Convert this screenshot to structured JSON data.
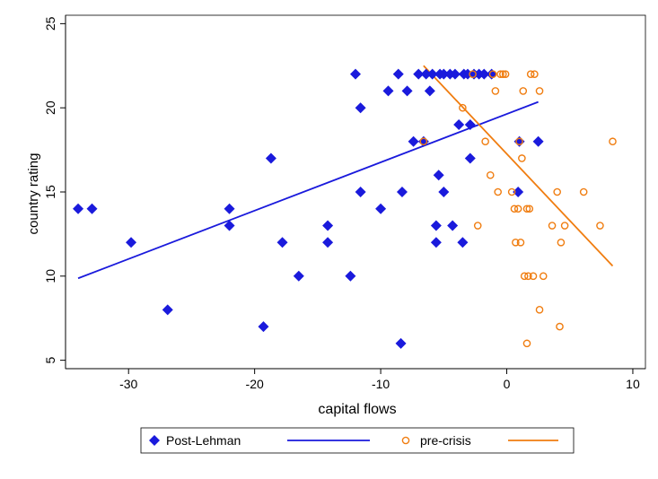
{
  "chart_data": {
    "type": "scatter",
    "title": "",
    "xlabel": "capital flows",
    "ylabel": "country rating",
    "xlim": [
      -35,
      11
    ],
    "ylim": [
      4.5,
      25.5
    ],
    "xticks": [
      -30,
      -20,
      -10,
      0,
      10
    ],
    "yticks": [
      5,
      10,
      15,
      20,
      25
    ],
    "grid": false,
    "legend_position": "bottom",
    "colors": {
      "post_lehman": "#1a1adc",
      "pre_crisis": "#f07d10"
    },
    "series": [
      {
        "name": "Post-Lehman",
        "marker": "diamond",
        "points": [
          {
            "x": -34.0,
            "y": 14
          },
          {
            "x": -32.9,
            "y": 14
          },
          {
            "x": -29.8,
            "y": 12
          },
          {
            "x": -26.9,
            "y": 8
          },
          {
            "x": -22.0,
            "y": 14
          },
          {
            "x": -22.0,
            "y": 13
          },
          {
            "x": -19.3,
            "y": 7
          },
          {
            "x": -18.7,
            "y": 17
          },
          {
            "x": -17.8,
            "y": 12
          },
          {
            "x": -16.5,
            "y": 10
          },
          {
            "x": -14.2,
            "y": 13
          },
          {
            "x": -14.2,
            "y": 12
          },
          {
            "x": -12.4,
            "y": 10
          },
          {
            "x": -12.0,
            "y": 22
          },
          {
            "x": -11.6,
            "y": 20
          },
          {
            "x": -11.6,
            "y": 15
          },
          {
            "x": -10.0,
            "y": 14
          },
          {
            "x": -9.4,
            "y": 21
          },
          {
            "x": -8.6,
            "y": 22
          },
          {
            "x": -8.3,
            "y": 15
          },
          {
            "x": -8.4,
            "y": 6
          },
          {
            "x": -7.9,
            "y": 21
          },
          {
            "x": -7.4,
            "y": 18
          },
          {
            "x": -7.0,
            "y": 22
          },
          {
            "x": -6.6,
            "y": 18
          },
          {
            "x": -6.4,
            "y": 22
          },
          {
            "x": -6.1,
            "y": 21
          },
          {
            "x": -5.9,
            "y": 22
          },
          {
            "x": -5.6,
            "y": 13
          },
          {
            "x": -5.6,
            "y": 12
          },
          {
            "x": -5.4,
            "y": 16
          },
          {
            "x": -5.3,
            "y": 22
          },
          {
            "x": -5.0,
            "y": 15
          },
          {
            "x": -5.0,
            "y": 22
          },
          {
            "x": -4.5,
            "y": 22
          },
          {
            "x": -4.3,
            "y": 13
          },
          {
            "x": -4.1,
            "y": 22
          },
          {
            "x": -3.8,
            "y": 19
          },
          {
            "x": -3.5,
            "y": 12
          },
          {
            "x": -3.4,
            "y": 22
          },
          {
            "x": -3.1,
            "y": 22
          },
          {
            "x": -2.9,
            "y": 17
          },
          {
            "x": -2.9,
            "y": 19
          },
          {
            "x": -2.6,
            "y": 22
          },
          {
            "x": -2.2,
            "y": 22
          },
          {
            "x": -1.8,
            "y": 22
          },
          {
            "x": -1.2,
            "y": 22
          },
          {
            "x": 1.0,
            "y": 18
          },
          {
            "x": 0.9,
            "y": 15
          },
          {
            "x": 2.5,
            "y": 18
          }
        ]
      },
      {
        "name": "pre-crisis",
        "marker": "hollow-circle",
        "points": [
          {
            "x": -6.6,
            "y": 18
          },
          {
            "x": -3.5,
            "y": 20
          },
          {
            "x": -2.7,
            "y": 22
          },
          {
            "x": -2.3,
            "y": 13
          },
          {
            "x": -1.7,
            "y": 18
          },
          {
            "x": -1.3,
            "y": 16
          },
          {
            "x": -1.1,
            "y": 22
          },
          {
            "x": -0.9,
            "y": 21
          },
          {
            "x": -0.7,
            "y": 15
          },
          {
            "x": -0.5,
            "y": 22
          },
          {
            "x": -0.3,
            "y": 22
          },
          {
            "x": -0.1,
            "y": 22
          },
          {
            "x": 0.4,
            "y": 15
          },
          {
            "x": 0.6,
            "y": 14
          },
          {
            "x": 0.7,
            "y": 12
          },
          {
            "x": 0.9,
            "y": 14
          },
          {
            "x": 1.0,
            "y": 18
          },
          {
            "x": 1.1,
            "y": 12
          },
          {
            "x": 1.2,
            "y": 17
          },
          {
            "x": 1.3,
            "y": 21
          },
          {
            "x": 1.4,
            "y": 10
          },
          {
            "x": 1.6,
            "y": 14
          },
          {
            "x": 1.6,
            "y": 6
          },
          {
            "x": 1.7,
            "y": 10
          },
          {
            "x": 1.8,
            "y": 14
          },
          {
            "x": 1.9,
            "y": 22
          },
          {
            "x": 2.1,
            "y": 10
          },
          {
            "x": 2.2,
            "y": 22
          },
          {
            "x": 2.6,
            "y": 21
          },
          {
            "x": 2.6,
            "y": 8
          },
          {
            "x": 2.9,
            "y": 10
          },
          {
            "x": 3.6,
            "y": 13
          },
          {
            "x": 4.0,
            "y": 15
          },
          {
            "x": 4.2,
            "y": 7
          },
          {
            "x": 4.3,
            "y": 12
          },
          {
            "x": 4.6,
            "y": 13
          },
          {
            "x": 6.1,
            "y": 15
          },
          {
            "x": 7.4,
            "y": 13
          },
          {
            "x": 8.4,
            "y": 18
          }
        ]
      }
    ],
    "fit_lines": [
      {
        "series": "Post-Lehman",
        "x": [
          -34.0,
          2.5
        ],
        "y": [
          9.87,
          20.35
        ]
      },
      {
        "series": "pre-crisis",
        "x": [
          -6.6,
          8.4
        ],
        "y": [
          22.5,
          10.6
        ]
      }
    ],
    "legend": [
      {
        "label": "Post-Lehman",
        "kind": "marker",
        "series": "Post-Lehman"
      },
      {
        "label": "",
        "kind": "line",
        "series": "Post-Lehman"
      },
      {
        "label": "pre-crisis",
        "kind": "marker",
        "series": "pre-crisis"
      },
      {
        "label": "",
        "kind": "line",
        "series": "pre-crisis"
      }
    ]
  }
}
